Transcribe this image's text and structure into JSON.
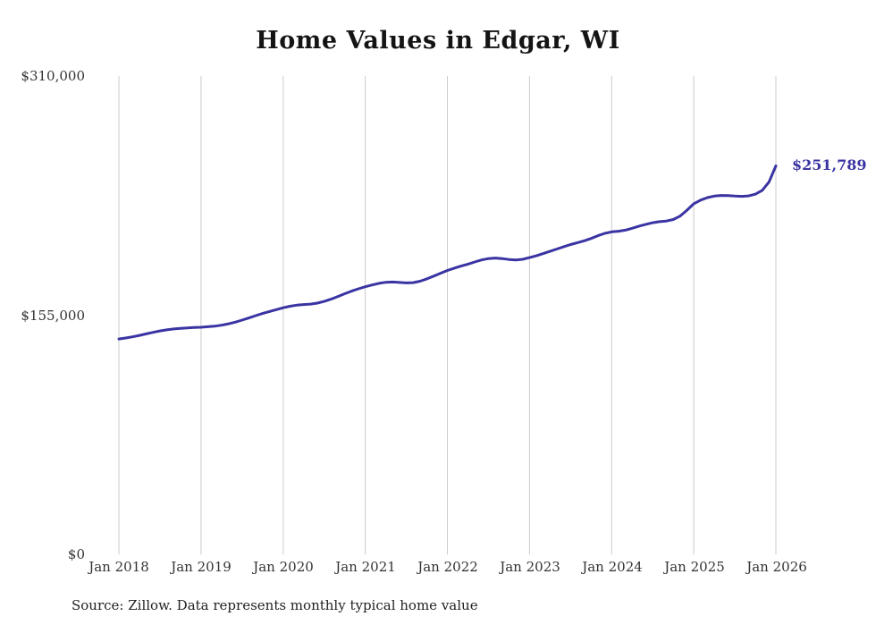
{
  "title": "Home Values in Edgar, WI",
  "source_note": "Source: Zillow. Data represents monthly typical home value",
  "end_label": "$251,789",
  "colors": {
    "line": "#3a34a3",
    "grid": "#cccccc",
    "title": "#141414",
    "tick": "#333333"
  },
  "chart_data": {
    "type": "line",
    "title": "Home Values in Edgar, WI",
    "xlabel": "",
    "ylabel": "",
    "unit": "USD",
    "x_start": "2018-01",
    "x_interval": "month",
    "x_tick_labels": [
      "Jan 2018",
      "Jan 2019",
      "Jan 2020",
      "Jan 2021",
      "Jan 2022",
      "Jan 2023",
      "Jan 2024",
      "Jan 2025",
      "Jan 2026"
    ],
    "y_tick_labels": [
      "$0",
      "$155,000",
      "$310,000"
    ],
    "y_ticks": [
      0,
      155000,
      310000
    ],
    "ylim": [
      0,
      310000
    ],
    "grid": "vertical-only",
    "legend": "none",
    "end_value": 251789,
    "end_value_label": "$251,789",
    "values": [
      139600,
      140200,
      141000,
      141900,
      142900,
      143900,
      144800,
      145500,
      146100,
      146500,
      146800,
      147000,
      147200,
      147500,
      147900,
      148500,
      149400,
      150500,
      151800,
      153200,
      154700,
      156100,
      157400,
      158600,
      159800,
      160800,
      161500,
      161900,
      162200,
      162800,
      163900,
      165400,
      167100,
      168900,
      170600,
      172100,
      173400,
      174600,
      175600,
      176300,
      176500,
      176200,
      175900,
      176100,
      177000,
      178500,
      180300,
      182200,
      184000,
      185500,
      186800,
      188100,
      189500,
      190800,
      191700,
      192000,
      191700,
      191100,
      190800,
      191200,
      192300,
      193500,
      194900,
      196400,
      197900,
      199400,
      200800,
      202000,
      203200,
      204700,
      206500,
      208000,
      209000,
      209400,
      210100,
      211300,
      212700,
      213900,
      214900,
      215600,
      216000,
      217000,
      219200,
      223000,
      227200,
      229600,
      231200,
      232200,
      232600,
      232500,
      232200,
      232000,
      232300,
      233400,
      235900,
      241300,
      251789
    ]
  }
}
